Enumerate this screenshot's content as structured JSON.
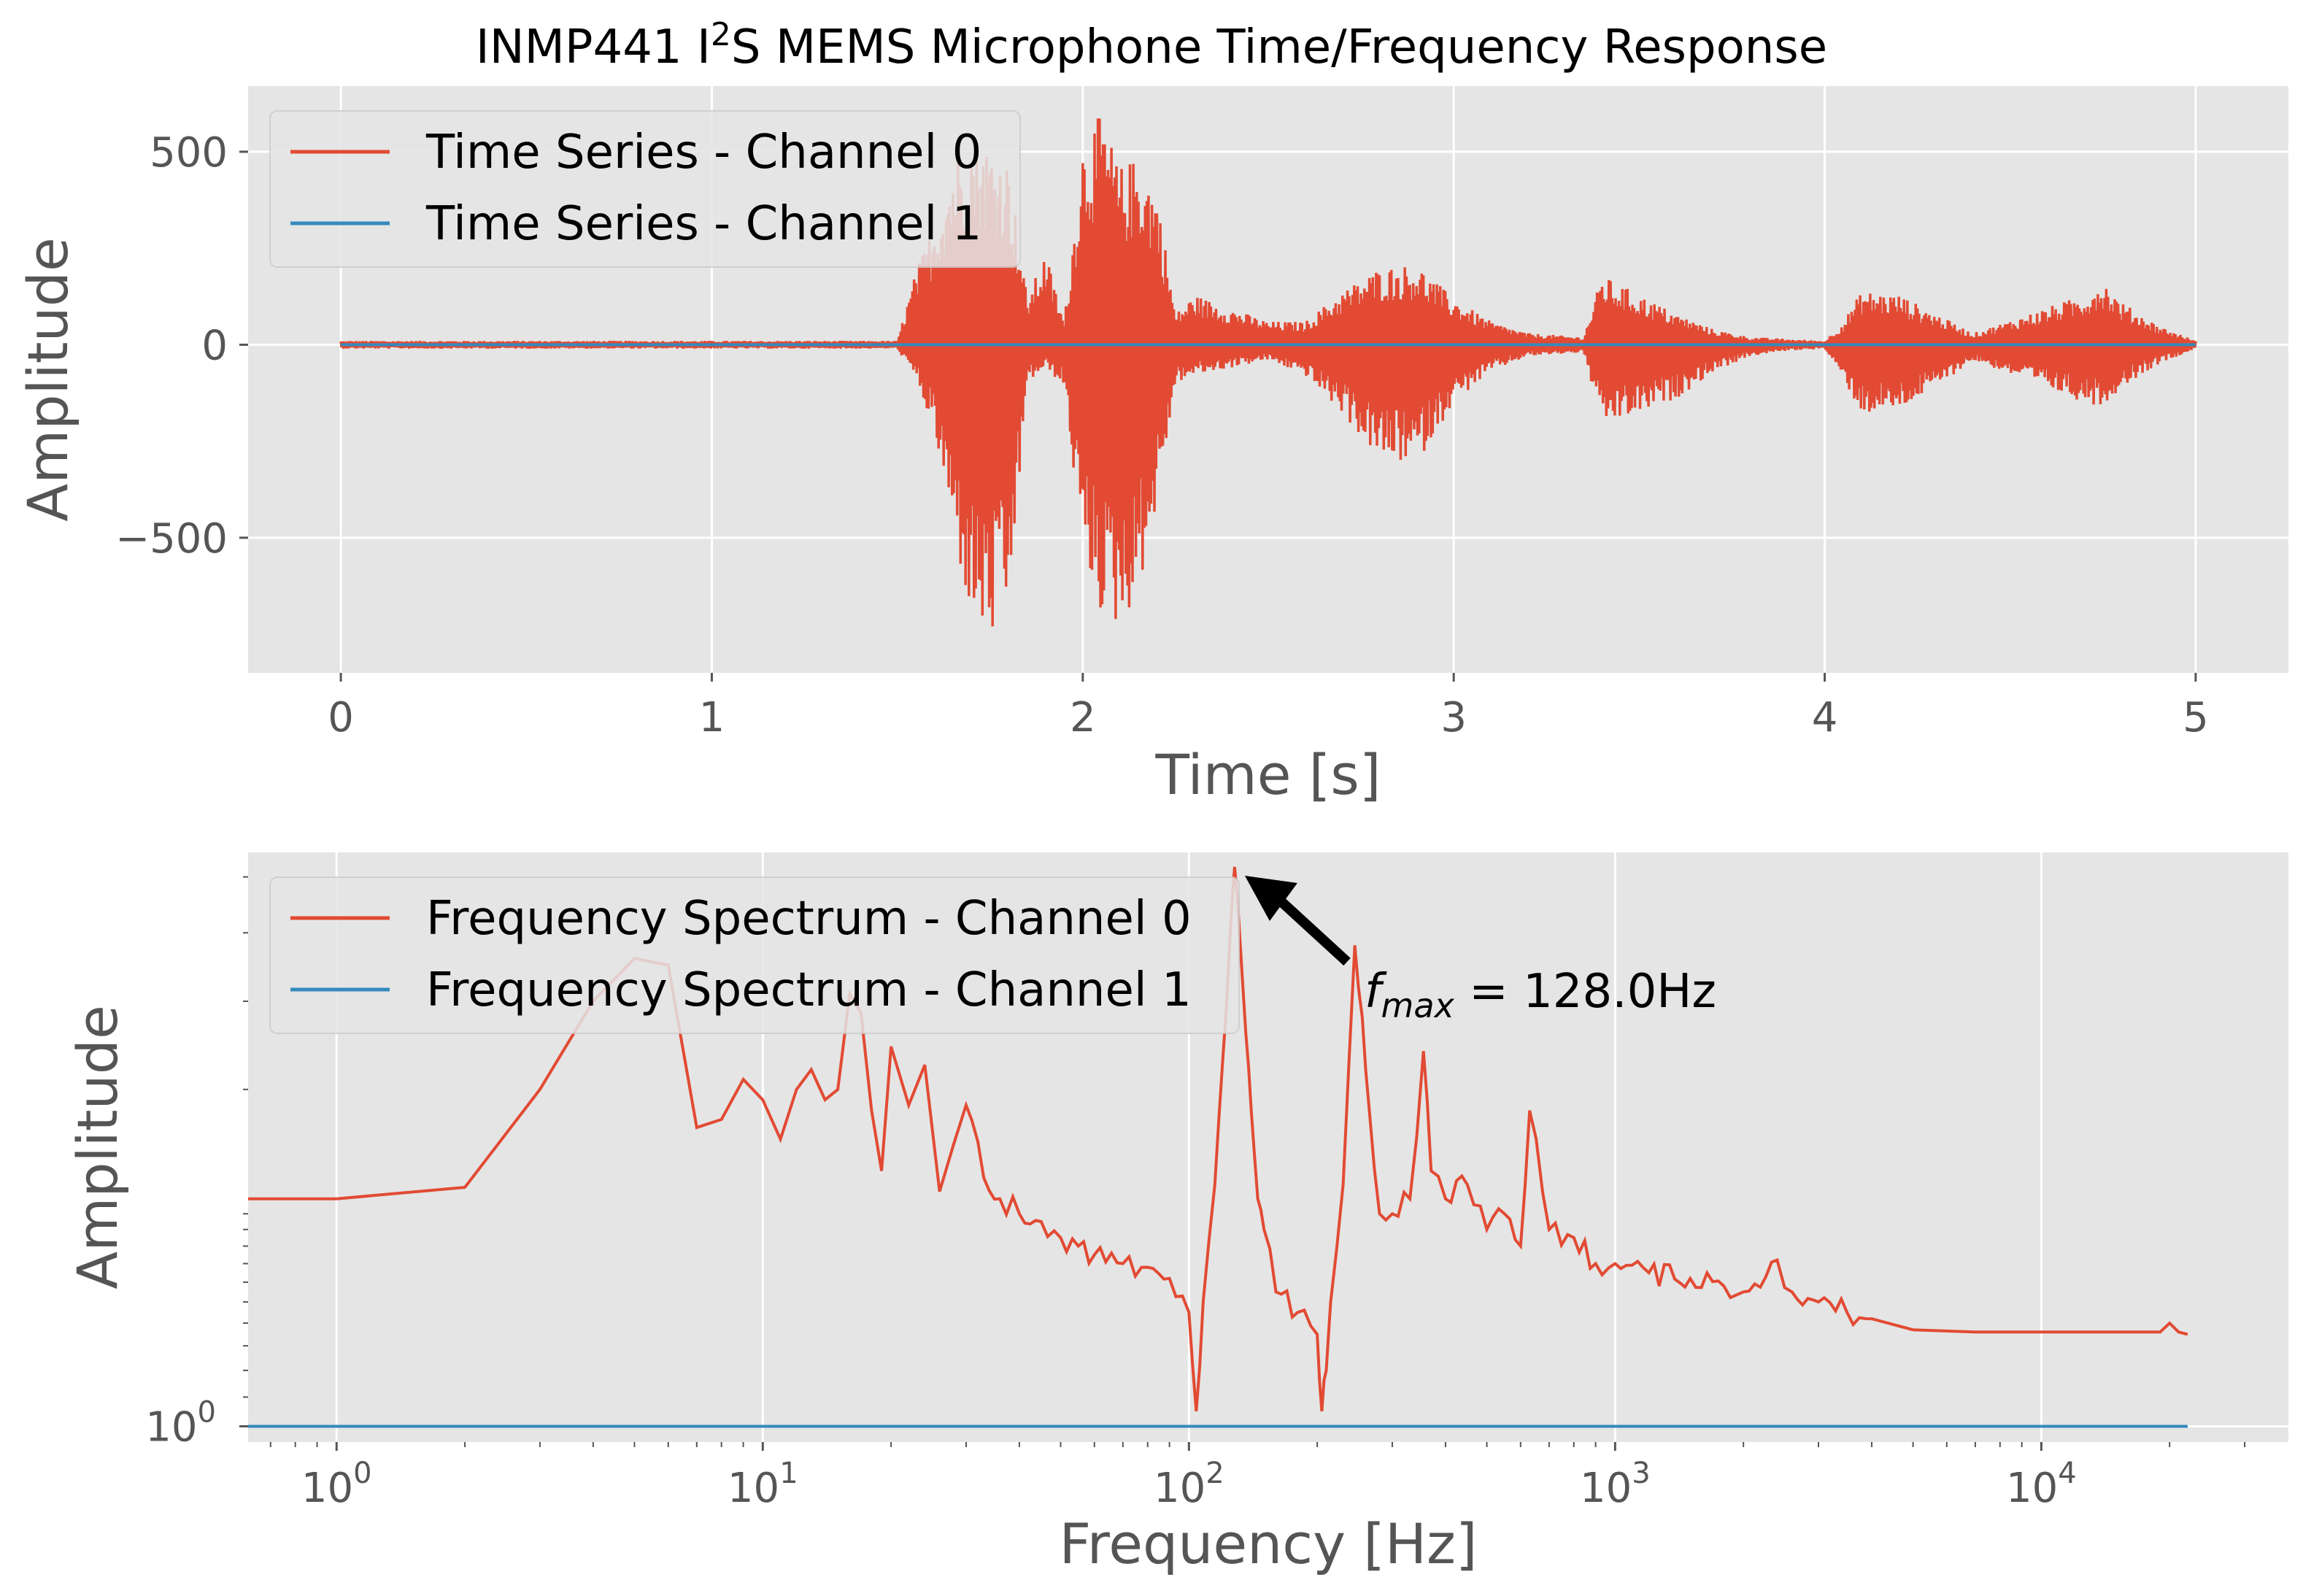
{
  "title_main": "INMP441 I",
  "title_sup": "2",
  "title_rest": "S MEMS Microphone Time/Frequency Response",
  "colors": {
    "background": "#e5e5e5",
    "grid": "#ffffff",
    "channel0": "#e24a33",
    "channel1": "#348abd",
    "text": "#555555"
  },
  "chart_data": [
    {
      "type": "line",
      "xlabel": "Time [s]",
      "ylabel": "Amplitude",
      "xlim": [
        -0.25,
        5.25
      ],
      "ylim": [
        -850,
        670
      ],
      "xticks": [
        0,
        1,
        2,
        3,
        4,
        5
      ],
      "xtick_labels": [
        "0",
        "1",
        "2",
        "3",
        "4",
        "5"
      ],
      "yticks": [
        -500,
        0,
        500
      ],
      "ytick_labels": [
        "−500",
        "0",
        "500"
      ],
      "grid": true,
      "legend": "top-left",
      "series": [
        {
          "name": "Time Series - Channel 0",
          "color": "#e24a33",
          "envelope": {
            "t": [
              0,
              0.5,
              1.0,
              1.5,
              1.55,
              1.6,
              1.65,
              1.7,
              1.75,
              1.8,
              1.85,
              1.9,
              1.95,
              2.0,
              2.05,
              2.1,
              2.15,
              2.2,
              2.25,
              2.3,
              2.5,
              2.6,
              2.7,
              2.8,
              2.9,
              3.0,
              3.1,
              3.2,
              3.35,
              3.4,
              3.5,
              3.6,
              3.7,
              3.8,
              3.9,
              4.0,
              4.05,
              4.1,
              4.2,
              4.3,
              4.4,
              4.7,
              4.75,
              4.8,
              4.9,
              5.0
            ],
            "max": [
              10,
              10,
              10,
              10,
              190,
              320,
              480,
              540,
              520,
              480,
              120,
              240,
              60,
              530,
              600,
              460,
              490,
              400,
              80,
              130,
              60,
              60,
              140,
              200,
              210,
              120,
              60,
              30,
              20,
              180,
              130,
              80,
              40,
              20,
              15,
              10,
              60,
              140,
              130,
              80,
              30,
              130,
              170,
              110,
              50,
              10
            ],
            "min": [
              -10,
              -10,
              -10,
              -10,
              -90,
              -230,
              -490,
              -720,
              -780,
              -700,
              -100,
              -60,
              -110,
              -550,
              -700,
              -740,
              -640,
              -420,
              -100,
              -80,
              -40,
              -80,
              -180,
              -300,
              -310,
              -150,
              -70,
              -30,
              -20,
              -210,
              -180,
              -140,
              -70,
              -30,
              -15,
              -10,
              -90,
              -180,
              -170,
              -110,
              -40,
              -150,
              -160,
              -110,
              -50,
              -10
            ]
          }
        },
        {
          "name": "Time Series - Channel 1",
          "color": "#348abd",
          "t": [
            0,
            5
          ],
          "values": [
            0,
            0
          ]
        }
      ]
    },
    {
      "type": "line",
      "xlabel": "Frequency [Hz]",
      "ylabel": "Amplitude",
      "xscale": "log",
      "yscale": "log",
      "xlim": [
        0.62,
        38000
      ],
      "xticks": [
        1,
        10,
        100,
        1000,
        10000
      ],
      "xtick_base": "10",
      "xtick_exponents": [
        "0",
        "1",
        "2",
        "3",
        "4"
      ],
      "ytick_base": "10",
      "ytick_exponent": "0",
      "grid": true,
      "legend": "top-left",
      "annotation": {
        "symbol": "f",
        "subscript": "max",
        "text": " = 128.0Hz",
        "x": 128.0
      },
      "series": [
        {
          "name": "Frequency Spectrum - Channel 0",
          "color": "#e24a33",
          "x": [
            0.62,
            1,
            2,
            3,
            4,
            5,
            6,
            7,
            8,
            9,
            10,
            11,
            12,
            13,
            14,
            15,
            16,
            17,
            18,
            19,
            20,
            22,
            24,
            26,
            28,
            30,
            33,
            36,
            40,
            45,
            50,
            55,
            60,
            70,
            80,
            90,
            100,
            104,
            108,
            115,
            120,
            125,
            128,
            132,
            136,
            140,
            145,
            150,
            160,
            180,
            200,
            205,
            210,
            215,
            230,
            245,
            255,
            265,
            280,
            300,
            330,
            355,
            370,
            400,
            450,
            500,
            550,
            600,
            630,
            700,
            800,
            900,
            1000,
            1200,
            1500,
            1800,
            2000,
            2400,
            2600,
            3000,
            3500,
            4000,
            5000,
            7000,
            10000,
            15000,
            19000,
            20000,
            21000,
            22050
          ],
          "y": [
            2.1,
            2.1,
            2.18,
            3.0,
            4.0,
            4.6,
            4.5,
            2.65,
            2.72,
            3.1,
            2.9,
            2.55,
            3.0,
            3.2,
            2.9,
            3.0,
            4.1,
            3.85,
            2.8,
            2.3,
            3.45,
            2.85,
            3.25,
            2.15,
            2.5,
            2.85,
            2.25,
            2.1,
            2.0,
            1.95,
            1.85,
            1.8,
            1.75,
            1.7,
            1.68,
            1.62,
            1.45,
            1.05,
            1.5,
            2.2,
            3.3,
            5.0,
            6.2,
            4.8,
            3.6,
            2.8,
            2.1,
            1.9,
            1.55,
            1.45,
            1.35,
            1.05,
            1.2,
            1.5,
            2.2,
            4.8,
            3.8,
            2.8,
            2.0,
            2.0,
            2.1,
            3.4,
            2.3,
            2.1,
            2.2,
            1.9,
            2.0,
            1.8,
            2.8,
            1.9,
            1.85,
            1.7,
            1.7,
            1.65,
            1.62,
            1.58,
            1.55,
            1.72,
            1.55,
            1.5,
            1.45,
            1.42,
            1.37,
            1.36,
            1.36,
            1.36,
            1.36,
            1.4,
            1.36,
            1.35
          ]
        },
        {
          "name": "Frequency Spectrum - Channel 1",
          "color": "#348abd",
          "x": [
            0.62,
            22050
          ],
          "y": [
            1,
            1
          ]
        }
      ]
    }
  ]
}
